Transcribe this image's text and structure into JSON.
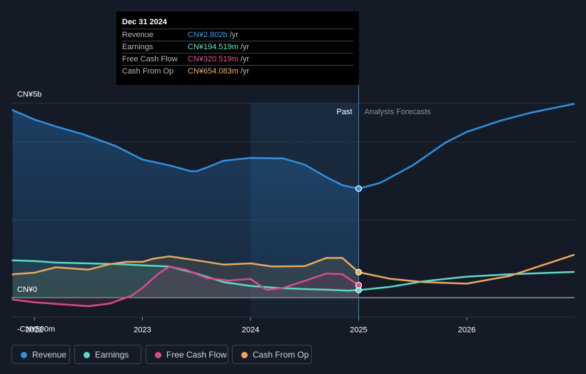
{
  "tooltip": {
    "date": "Dec 31 2024",
    "rows": [
      {
        "label": "Revenue",
        "value": "CN¥2.802b",
        "unit": " /yr",
        "color": "#3b9eea"
      },
      {
        "label": "Earnings",
        "value": "CN¥194.519m",
        "unit": " /yr",
        "color": "#61e3cf"
      },
      {
        "label": "Free Cash Flow",
        "value": "CN¥320.519m",
        "unit": " /yr",
        "color": "#e2578f"
      },
      {
        "label": "Cash From Op",
        "value": "CN¥654.083m",
        "unit": " /yr",
        "color": "#f2b267"
      }
    ]
  },
  "legend": [
    {
      "label": "Revenue",
      "color": "#2f8fe0"
    },
    {
      "label": "Earnings",
      "color": "#5ad8c6"
    },
    {
      "label": "Free Cash Flow",
      "color": "#d64c87"
    },
    {
      "label": "Cash From Op",
      "color": "#e8a85e"
    }
  ],
  "chart_data": {
    "type": "line",
    "title": "",
    "xlabel": "",
    "ylabel": "",
    "y_tick_labels": [
      "CN¥5b",
      "CN¥0",
      "-CN¥500m"
    ],
    "x_tick_labels": [
      "2022",
      "2023",
      "2024",
      "2025",
      "2026"
    ],
    "ylim": [
      -500,
      5000
    ],
    "xlim": [
      2021.8,
      2026.99
    ],
    "past_label": "Past",
    "forecast_label": "Analysts Forecasts",
    "divider_x": 2025.0,
    "highlight_start": 2024.0,
    "grid": true,
    "series": [
      {
        "name": "Revenue",
        "color": "#2f8fe0",
        "x": [
          2021.8,
          2022.0,
          2022.2,
          2022.45,
          2022.75,
          2023.0,
          2023.25,
          2023.45,
          2023.5,
          2023.6,
          2023.75,
          2024.0,
          2024.3,
          2024.5,
          2024.7,
          2024.85,
          2025.0,
          2025.2,
          2025.5,
          2025.8,
          2026.0,
          2026.3,
          2026.6,
          2026.99
        ],
        "values": [
          4820,
          4580,
          4400,
          4200,
          3900,
          3550,
          3400,
          3250,
          3250,
          3350,
          3520,
          3590,
          3580,
          3420,
          3100,
          2890,
          2802,
          2950,
          3400,
          3980,
          4260,
          4540,
          4760,
          4980
        ]
      },
      {
        "name": "Earnings",
        "color": "#5ad8c6",
        "x": [
          2021.8,
          2022.0,
          2022.2,
          2022.5,
          2022.8,
          2023.0,
          2023.25,
          2023.5,
          2023.75,
          2024.0,
          2024.25,
          2024.5,
          2024.75,
          2024.9,
          2025.0,
          2025.3,
          2025.6,
          2026.0,
          2026.4,
          2026.99
        ],
        "values": [
          960,
          940,
          900,
          880,
          860,
          830,
          800,
          620,
          400,
          300,
          250,
          220,
          200,
          180,
          194,
          280,
          420,
          540,
          600,
          660
        ]
      },
      {
        "name": "Free Cash Flow",
        "color": "#d64c87",
        "x": [
          2021.8,
          2022.0,
          2022.2,
          2022.5,
          2022.7,
          2022.9,
          2023.0,
          2023.15,
          2023.25,
          2023.4,
          2023.6,
          2023.8,
          2024.0,
          2024.15,
          2024.3,
          2024.5,
          2024.7,
          2024.85,
          2025.0
        ],
        "values": [
          -50,
          -120,
          -160,
          -220,
          -150,
          50,
          250,
          620,
          800,
          720,
          500,
          440,
          480,
          200,
          250,
          430,
          620,
          600,
          320
        ]
      },
      {
        "name": "Cash From Op",
        "color": "#e8a85e",
        "x": [
          2021.8,
          2022.0,
          2022.2,
          2022.5,
          2022.7,
          2022.85,
          2023.0,
          2023.1,
          2023.25,
          2023.5,
          2023.75,
          2024.0,
          2024.2,
          2024.5,
          2024.7,
          2024.85,
          2025.0,
          2025.3,
          2025.6,
          2026.0,
          2026.4,
          2026.99
        ],
        "values": [
          600,
          640,
          780,
          720,
          860,
          920,
          920,
          1000,
          1060,
          960,
          850,
          880,
          800,
          810,
          1020,
          1020,
          654,
          480,
          400,
          360,
          560,
          1100
        ]
      }
    ],
    "markers": [
      {
        "series": "Revenue",
        "x": 2025.0,
        "value": 2802
      },
      {
        "series": "Earnings",
        "x": 2025.0,
        "value": 194
      },
      {
        "series": "Free Cash Flow",
        "x": 2025.0,
        "value": 320
      },
      {
        "series": "Cash From Op",
        "x": 2025.0,
        "value": 654
      }
    ]
  }
}
